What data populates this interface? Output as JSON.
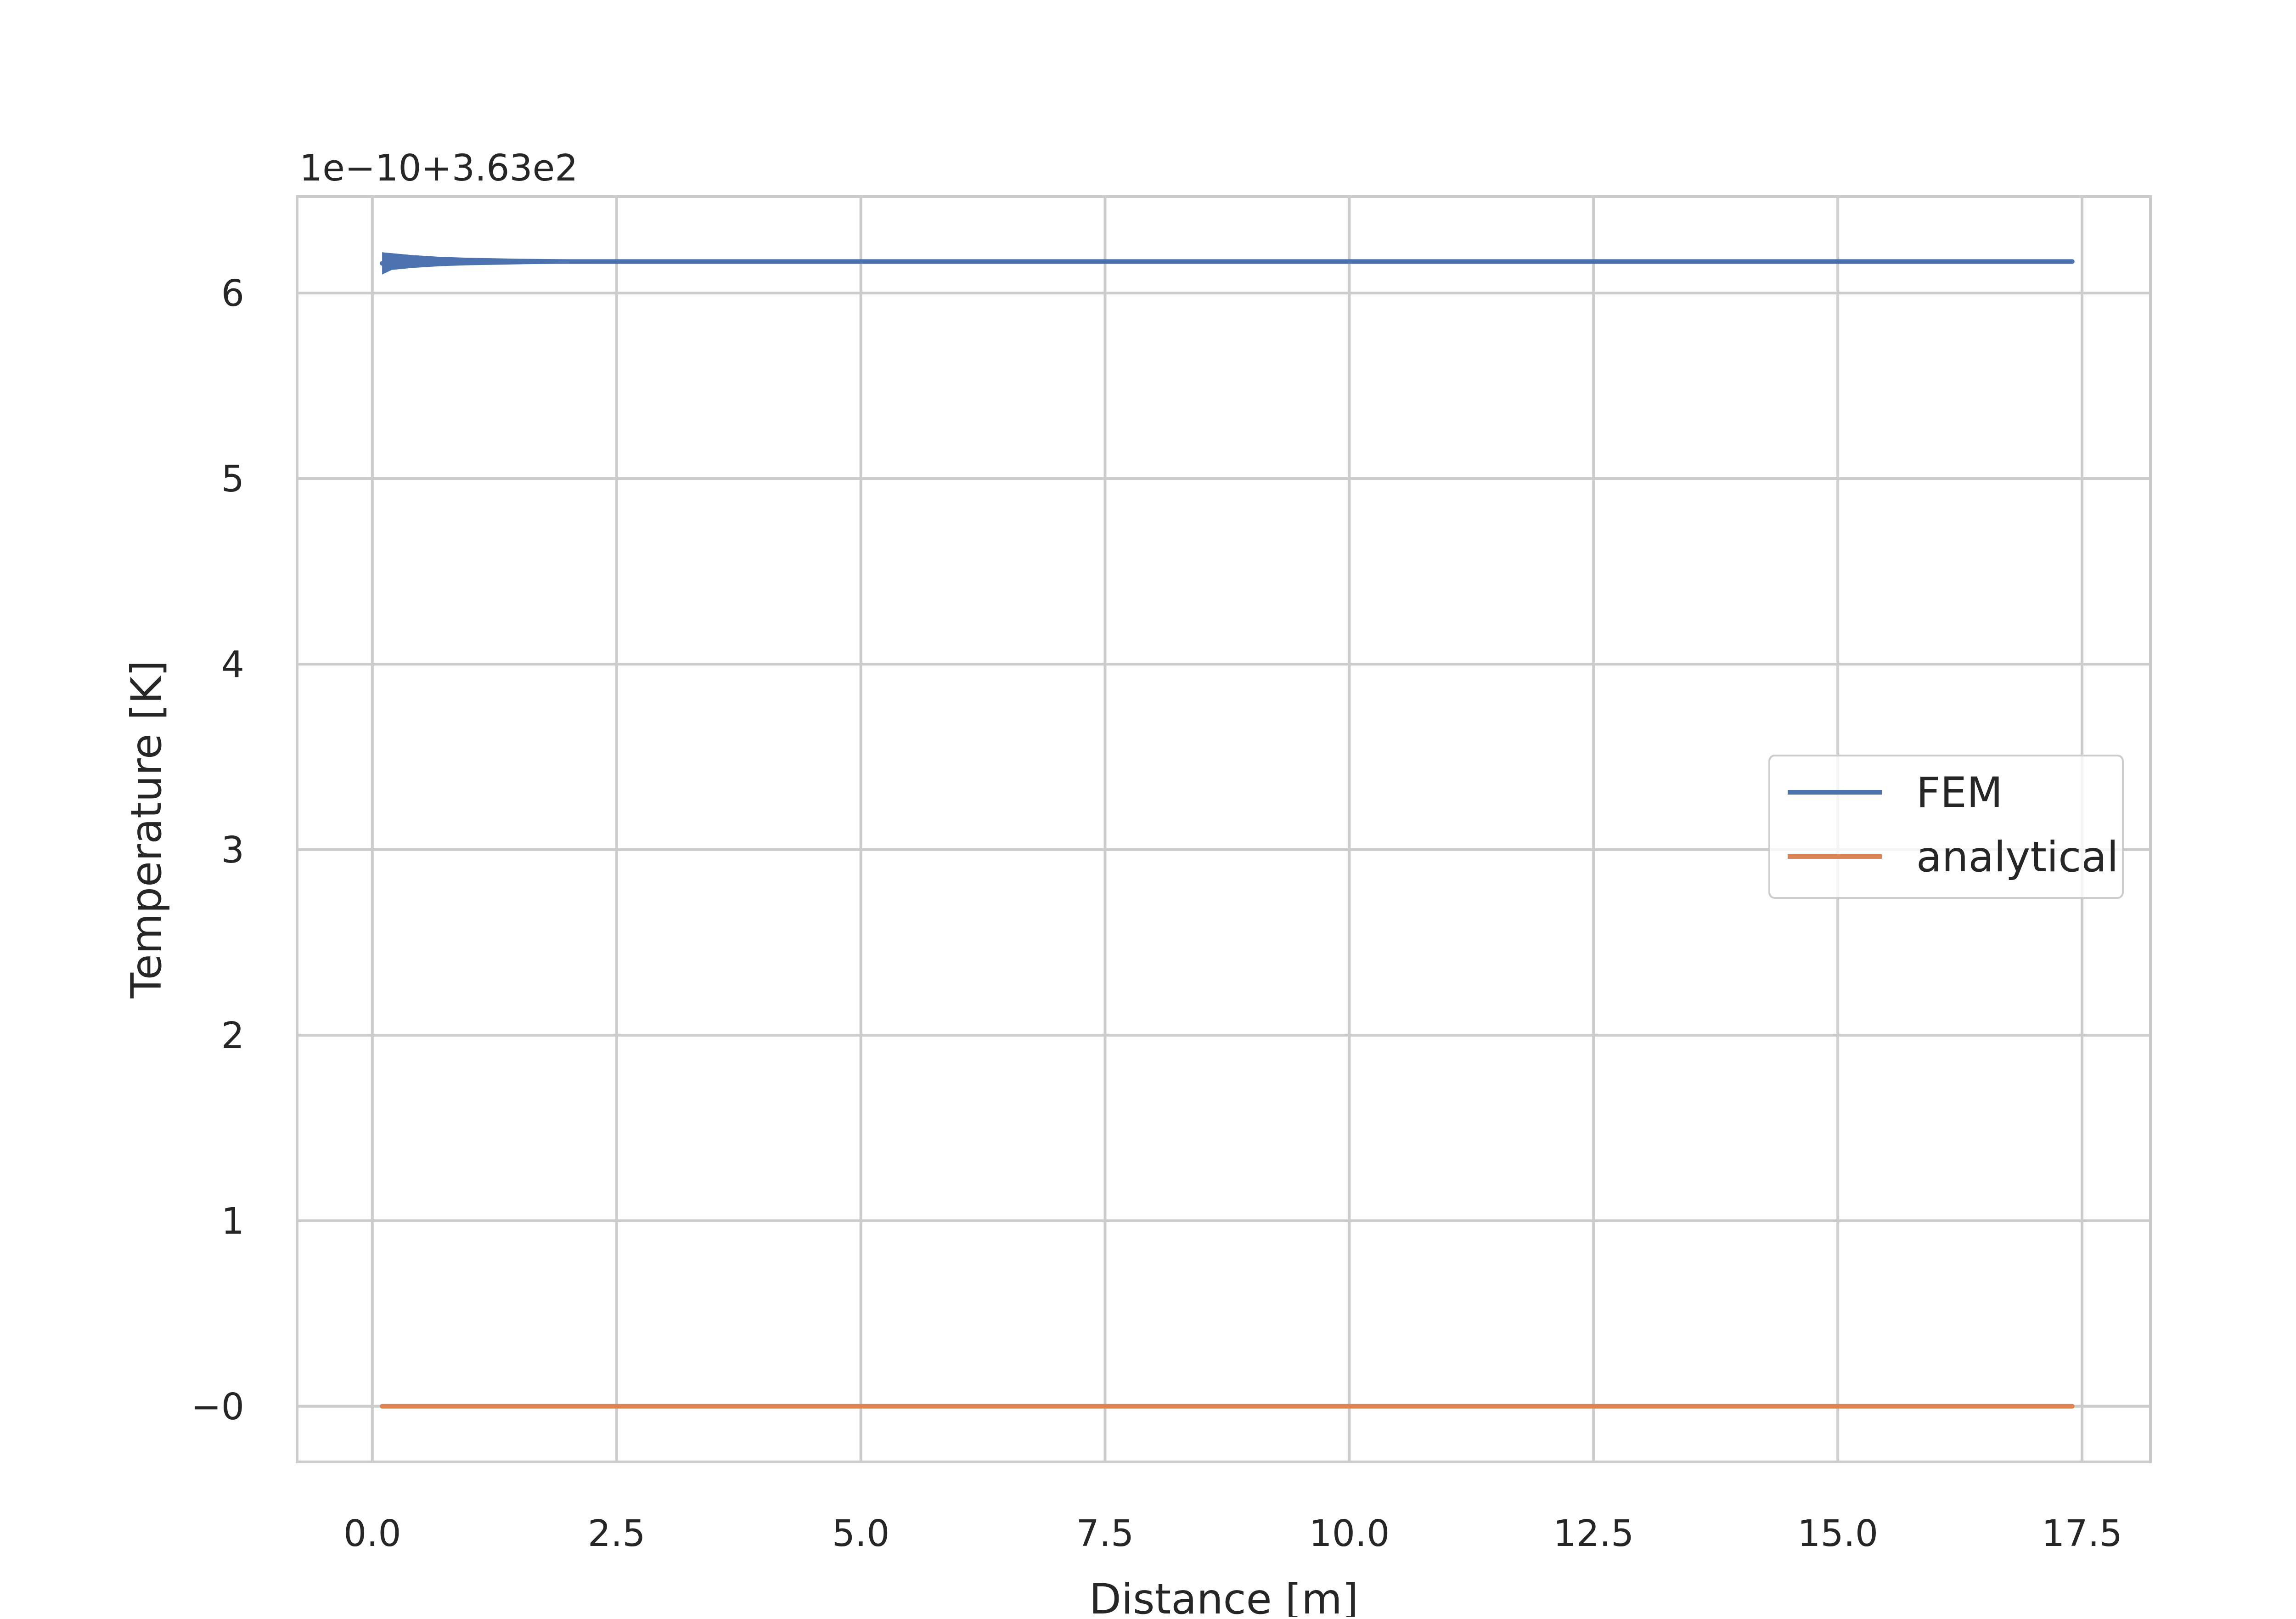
{
  "chart_data": {
    "type": "line",
    "title": "",
    "xlabel": "Distance [m]",
    "ylabel": "Temperature [K]",
    "y_offset_text": "1e−10+3.63e2",
    "xlim": [
      -0.77,
      18.2
    ],
    "ylim": [
      -0.3,
      6.52
    ],
    "x_ticks": [
      0.0,
      2.5,
      5.0,
      7.5,
      10.0,
      12.5,
      15.0,
      17.5
    ],
    "x_tick_labels": [
      "0.0",
      "2.5",
      "5.0",
      "7.5",
      "10.0",
      "12.5",
      "15.0",
      "17.5"
    ],
    "y_ticks": [
      0,
      1,
      2,
      3,
      4,
      5,
      6
    ],
    "y_tick_labels": [
      "−0",
      "1",
      "2",
      "3",
      "4",
      "5",
      "6"
    ],
    "grid": true,
    "legend_position": "center-right",
    "series": [
      {
        "name": "FEM",
        "color": "#4c72b0",
        "x": [
          0.1,
          0.2,
          0.4,
          0.7,
          1.0,
          1.5,
          2.0,
          3.0,
          5.0,
          7.5,
          10.0,
          12.5,
          15.0,
          17.4
        ],
        "y": [
          6.16,
          6.17,
          6.17,
          6.17,
          6.17,
          6.17,
          6.17,
          6.17,
          6.17,
          6.17,
          6.17,
          6.17,
          6.17,
          6.17
        ],
        "band_halfwidth": [
          0.06,
          0.045,
          0.035,
          0.025,
          0.02,
          0.015,
          0.012,
          0.01,
          0.01,
          0.01,
          0.01,
          0.01,
          0.01,
          0.01
        ]
      },
      {
        "name": "analytical",
        "color": "#dd8452",
        "x": [
          0.1,
          17.4
        ],
        "y": [
          0.0,
          0.0
        ]
      }
    ]
  }
}
